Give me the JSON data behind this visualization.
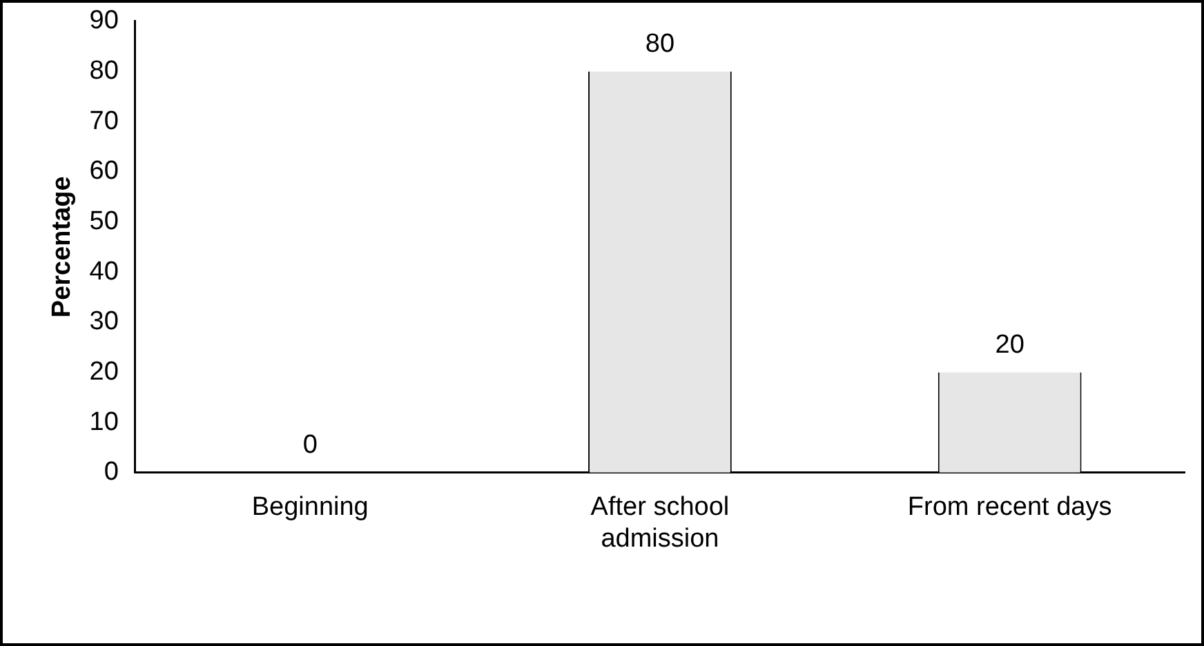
{
  "chart_data": {
    "type": "bar",
    "ylabel": "Percentage",
    "categories": [
      "Beginning",
      "After school admission",
      "From recent days"
    ],
    "values": [
      0,
      80,
      20
    ],
    "color": "#e6e6e6",
    "ylim": [
      0,
      90
    ],
    "yticks": [
      0,
      10,
      20,
      30,
      40,
      50,
      60,
      70,
      80,
      90
    ],
    "grid": false,
    "legend": false,
    "data_labels": true
  }
}
